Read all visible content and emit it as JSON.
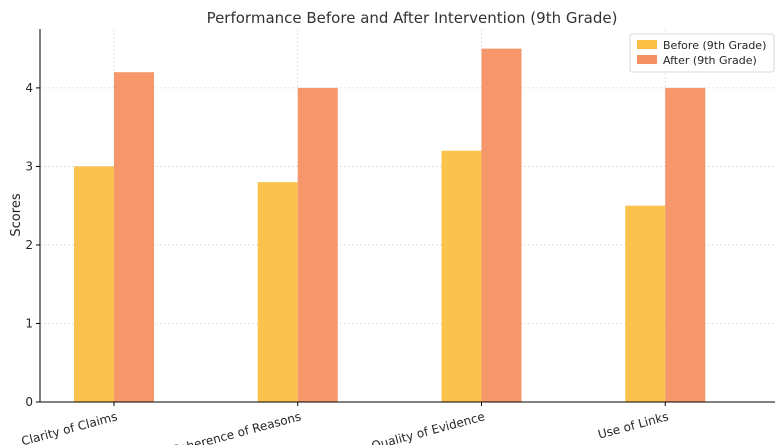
{
  "chart_data": {
    "type": "bar",
    "title": "Performance Before and After Intervention (9th Grade)",
    "xlabel": "",
    "ylabel": "Scores",
    "categories": [
      "Clarity of Claims",
      "Coherence of Reasons",
      "Quality of Evidence",
      "Use of Links"
    ],
    "series": [
      {
        "name": "Before (9th Grade)",
        "values": [
          3.0,
          2.8,
          3.2,
          2.5
        ],
        "color": "#fbbf45"
      },
      {
        "name": "After (9th Grade)",
        "values": [
          4.2,
          4.0,
          4.5,
          4.0
        ],
        "color": "#f59163"
      }
    ],
    "ylim": [
      0,
      4.75
    ],
    "yticks": [
      "0",
      "1",
      "2",
      "3",
      "4"
    ],
    "grid": true,
    "legend": "top-right"
  }
}
